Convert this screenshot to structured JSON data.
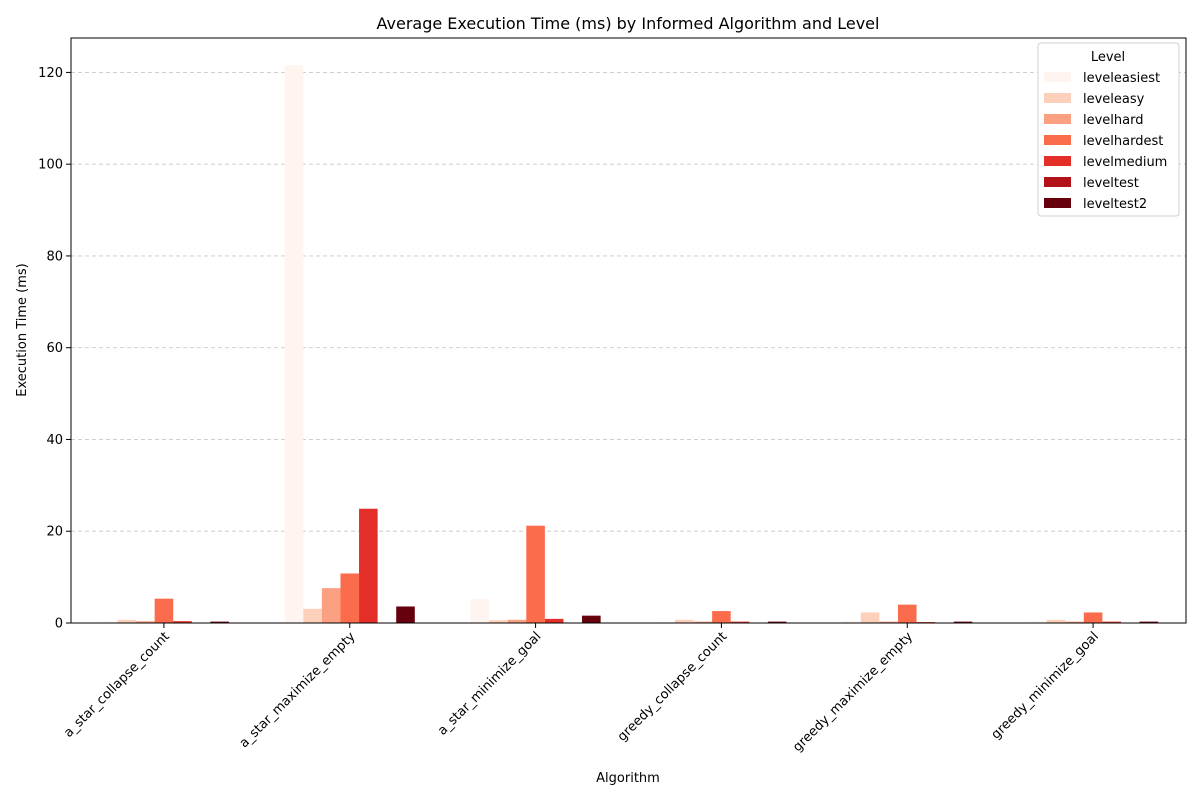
{
  "chart_data": {
    "type": "bar",
    "title": "Average Execution Time (ms) by Informed Algorithm and Level",
    "xlabel": "Algorithm",
    "ylabel": "Execution Time (ms)",
    "ylim": [
      0,
      127.5
    ],
    "yticks": [
      0,
      20,
      40,
      60,
      80,
      100,
      120
    ],
    "grid": true,
    "legend_title": "Level",
    "legend_position": "top-right",
    "categories": [
      "a_star_collapse_count",
      "a_star_maximize_empty",
      "a_star_minimize_goal",
      "greedy_collapse_count",
      "greedy_maximize_empty",
      "greedy_minimize_goal"
    ],
    "series": [
      {
        "name": "leveleasiest",
        "color": "#fff5f0",
        "values": [
          0.3,
          121.6,
          5.3,
          0.2,
          0.4,
          0.3
        ]
      },
      {
        "name": "leveleasy",
        "color": "#fdd0bc",
        "values": [
          0.7,
          3.1,
          0.6,
          0.7,
          2.3,
          0.7
        ]
      },
      {
        "name": "levelhard",
        "color": "#fca082",
        "values": [
          0.4,
          7.6,
          0.7,
          0.3,
          0.3,
          0.3
        ]
      },
      {
        "name": "levelhardest",
        "color": "#fb6c4c",
        "values": [
          5.3,
          10.8,
          21.2,
          2.6,
          4.0,
          2.3
        ]
      },
      {
        "name": "levelmedium",
        "color": "#e32f27",
        "values": [
          0.4,
          24.9,
          0.9,
          0.3,
          0.2,
          0.3
        ]
      },
      {
        "name": "leveltest",
        "color": "#b21218",
        "values": [
          0.1,
          0.1,
          0.1,
          0.1,
          0.1,
          0.1
        ]
      },
      {
        "name": "leveltest2",
        "color": "#67000d",
        "values": [
          0.3,
          3.6,
          1.6,
          0.3,
          0.3,
          0.3
        ]
      }
    ]
  }
}
